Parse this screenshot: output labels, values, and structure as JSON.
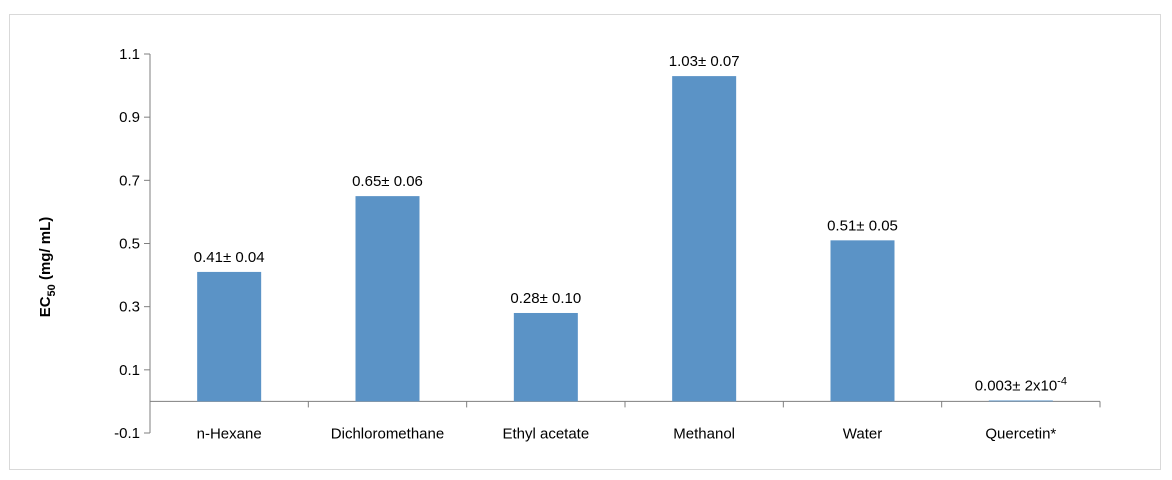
{
  "chart_data": {
    "type": "bar",
    "categories": [
      "n-Hexane",
      "Dichloromethane",
      "Ethyl acetate",
      "Methanol",
      "Water",
      "Quercetin*"
    ],
    "values": [
      0.41,
      0.65,
      0.28,
      1.03,
      0.51,
      0.003
    ],
    "data_labels": [
      {
        "text": "0.41± 0.04",
        "sup": ""
      },
      {
        "text": "0.65± 0.06",
        "sup": ""
      },
      {
        "text": "0.28± 0.10",
        "sup": ""
      },
      {
        "text": "1.03± 0.07",
        "sup": ""
      },
      {
        "text": "0.51± 0.05",
        "sup": ""
      },
      {
        "text": "0.003± 2x10",
        "sup": "-4"
      }
    ],
    "ylabel": {
      "main": "EC",
      "sub": "50",
      "rest": " (mg/ mL)"
    },
    "yticks": [
      -0.1,
      0.1,
      0.3,
      0.5,
      0.7,
      0.9,
      1.1
    ],
    "ytick_labels": [
      "-0.1",
      "0.1",
      "0.3",
      "0.5",
      "0.7",
      "0.9",
      "1.1"
    ],
    "ylim": [
      -0.1,
      1.1
    ],
    "grid": false,
    "bar_color": "#5b93c6",
    "axis_color": "#7f7f7f"
  }
}
